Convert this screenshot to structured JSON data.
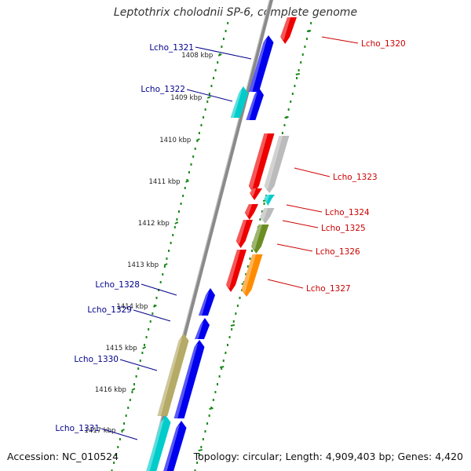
{
  "title": "Leptothrix cholodnii SP-6, complete genome",
  "footer": {
    "accession": "Accession: NC_010524",
    "topology": "Topology: circular; Length: 4,909,403 bp; Genes: 4,420"
  },
  "scale_labels": [
    "1408 kbp",
    "1409 kbp",
    "1410 kbp",
    "1411 kbp",
    "1412 kbp",
    "1413 kbp",
    "1414 kbp",
    "1415 kbp",
    "1416 kbp",
    "1417 kbp"
  ],
  "colors": {
    "forward_label": "#00008b",
    "reverse_label": "#cc0000",
    "ticks": "#1a8a1a",
    "backbone": "#888888",
    "red": "#ee0000",
    "blue": "#0000ee",
    "cyan": "#00cccc",
    "grey": "#bbbbbb",
    "olive": "#6b8e23",
    "orange": "#ff8c00",
    "khaki": "#b5aa66"
  },
  "genes": [
    {
      "label": "Lcho_1320",
      "strand": "reverse",
      "color": "red"
    },
    {
      "label": "Lcho_1321",
      "strand": "forward",
      "color": "blue"
    },
    {
      "label": "Lcho_1322",
      "strand": "forward",
      "color": "cyan"
    },
    {
      "label": "",
      "strand": "forward",
      "color": "blue"
    },
    {
      "label": "",
      "strand": "reverse",
      "color": "red"
    },
    {
      "label": "Lcho_1323",
      "strand": "reverse",
      "color": "grey"
    },
    {
      "label": "",
      "strand": "reverse",
      "color": "red"
    },
    {
      "label": "Lcho_1324",
      "strand": "reverse",
      "color": "cyan"
    },
    {
      "label": "",
      "strand": "reverse",
      "color": "red"
    },
    {
      "label": "Lcho_1325",
      "strand": "reverse",
      "color": "grey"
    },
    {
      "label": "",
      "strand": "reverse",
      "color": "red"
    },
    {
      "label": "Lcho_1326",
      "strand": "reverse",
      "color": "olive"
    },
    {
      "label": "",
      "strand": "reverse",
      "color": "red"
    },
    {
      "label": "Lcho_1327",
      "strand": "reverse",
      "color": "orange"
    },
    {
      "label": "Lcho_1328",
      "strand": "forward",
      "color": "blue"
    },
    {
      "label": "Lcho_1329",
      "strand": "forward",
      "color": "blue"
    },
    {
      "label": "Lcho_1330",
      "strand": "forward",
      "color": "blue"
    },
    {
      "label": "",
      "strand": "forward",
      "color": "khaki"
    },
    {
      "label": "Lcho_1331",
      "strand": "forward",
      "color": "cyan"
    },
    {
      "label": "",
      "strand": "forward",
      "color": "blue"
    }
  ]
}
